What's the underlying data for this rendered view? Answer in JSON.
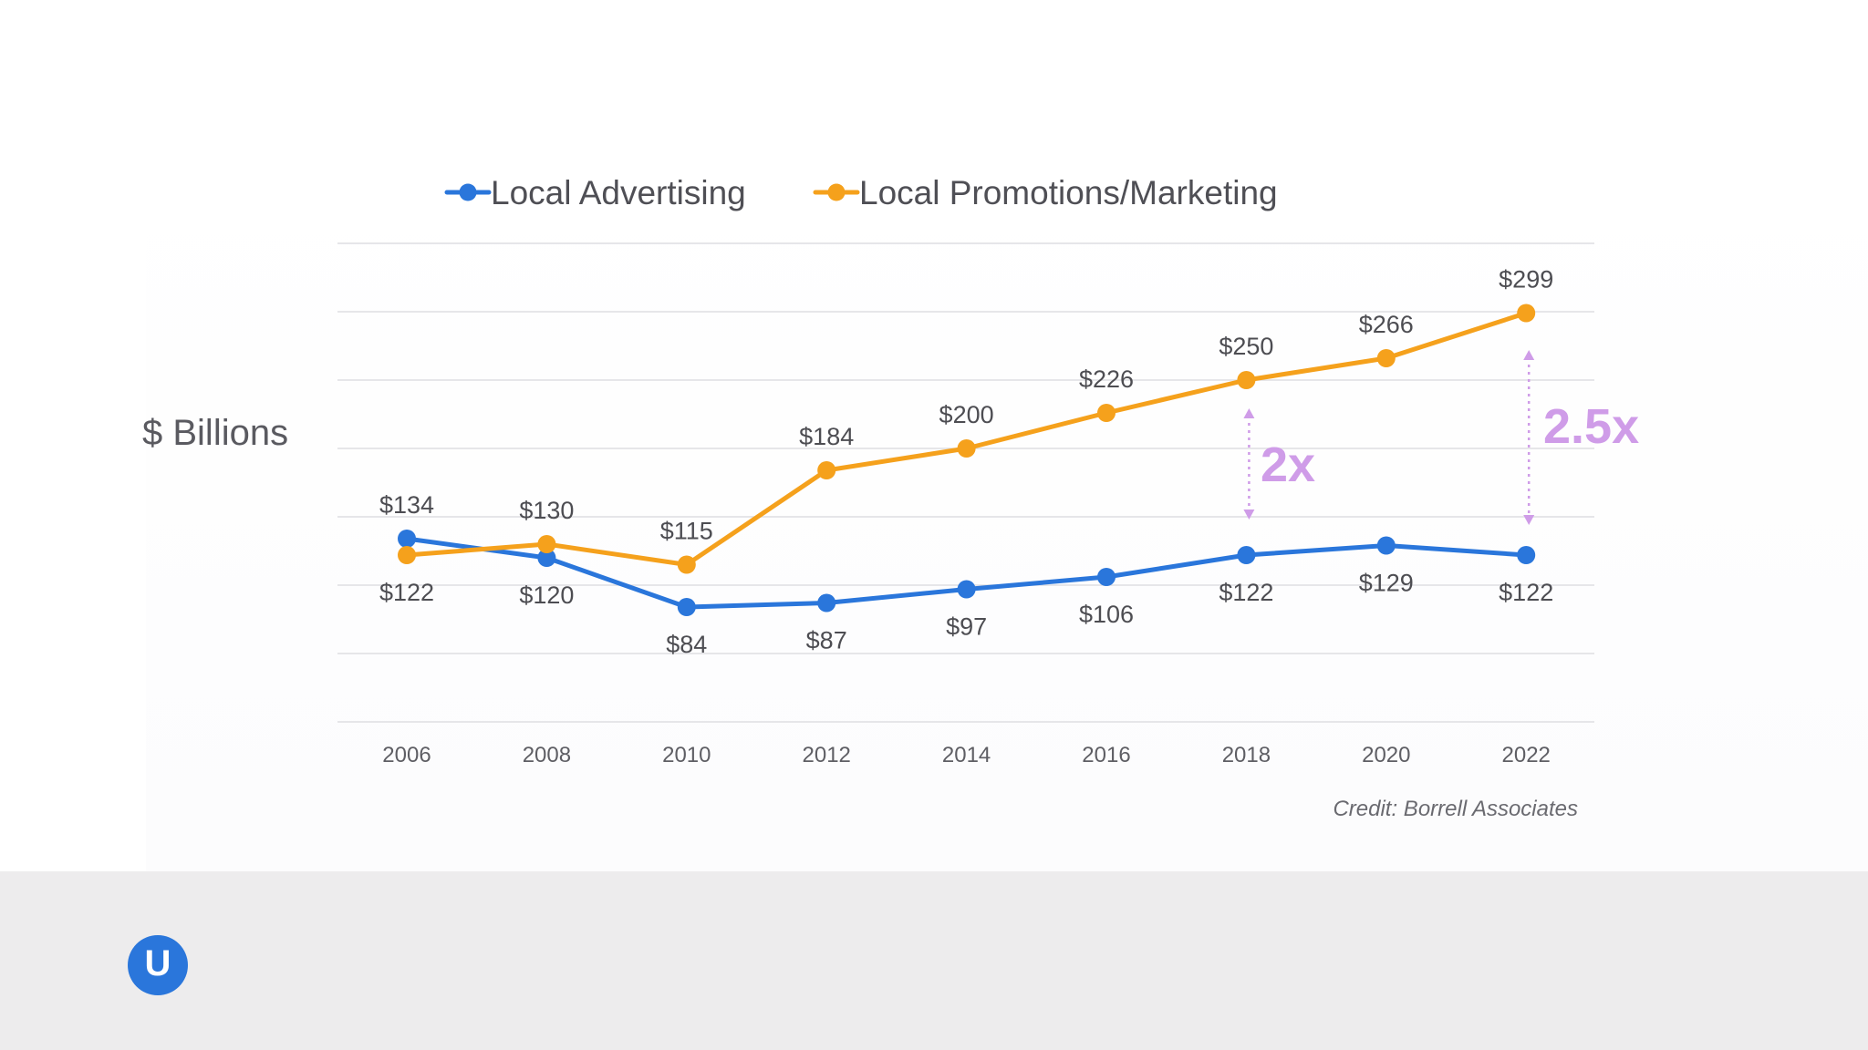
{
  "logo": {
    "glyph": "U"
  },
  "annotations": [
    {
      "text": "2x",
      "year": 2018
    },
    {
      "text": "2.5x",
      "year": 2022
    }
  ],
  "chart_data": {
    "type": "line",
    "title": "",
    "xlabel": "",
    "ylabel": "$ Billions",
    "credit": "Credit: Borrell Associates",
    "legend_position": "top",
    "grid": true,
    "ylim": [
      0,
      350
    ],
    "y_gridlines": [
      0,
      50,
      100,
      150,
      200,
      250,
      300,
      350
    ],
    "x": [
      "2006",
      "2008",
      "2010",
      "2012",
      "2014",
      "2016",
      "2018",
      "2020",
      "2022"
    ],
    "series": [
      {
        "name": "Local Advertising",
        "color": "#2a76db",
        "values": [
          134,
          120,
          84,
          87,
          97,
          106,
          122,
          129,
          122
        ],
        "labels": [
          "$134",
          "$120",
          "$84",
          "$87",
          "$97",
          "$106",
          "$122",
          "$129",
          "$122"
        ]
      },
      {
        "name": "Local Promotions/Marketing",
        "color": "#f5a11c",
        "values": [
          122,
          130,
          115,
          184,
          200,
          226,
          250,
          266,
          299
        ],
        "labels": [
          "$122",
          "$130",
          "$115",
          "$184",
          "$200",
          "$226",
          "$250",
          "$266",
          "$299"
        ]
      }
    ]
  }
}
